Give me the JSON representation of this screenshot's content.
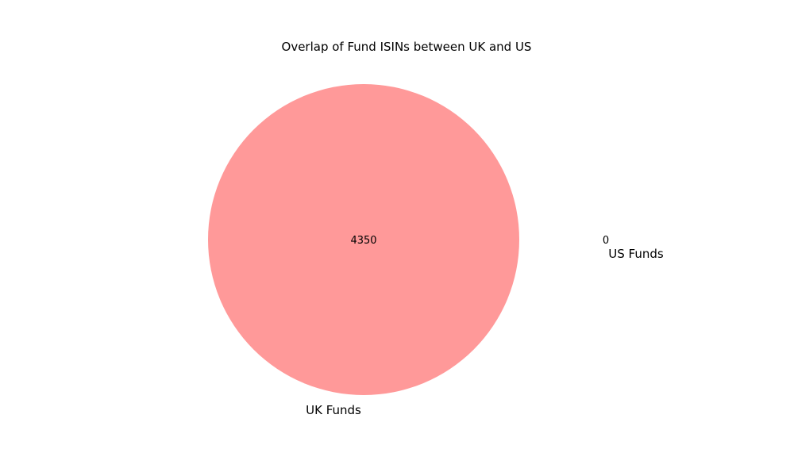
{
  "chart_data": {
    "type": "venn",
    "title": "Overlap of Fund ISINs between UK and US",
    "sets": [
      {
        "name": "UK Funds",
        "only_count": 4350,
        "color": "#ff9999"
      },
      {
        "name": "US Funds",
        "only_count": 0,
        "color": "#99ccff"
      }
    ],
    "intersection_count": null,
    "region_labels": {
      "uk_only": "4350",
      "us_only": "0"
    }
  }
}
